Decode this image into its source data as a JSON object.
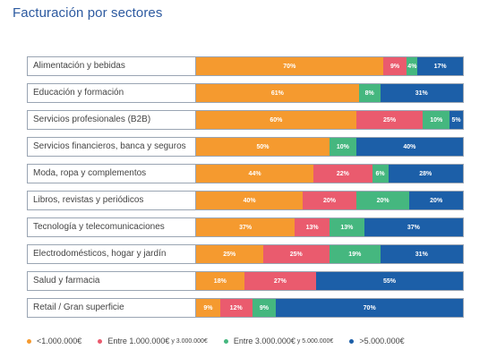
{
  "header": {
    "title": "Facturación por sectores"
  },
  "colors": {
    "s1": "#f59a2f",
    "s2": "#ea5b6e",
    "s3": "#45b77f",
    "s4": "#1c5fa8"
  },
  "legend": [
    {
      "main": "<1.000.000€",
      "small": ""
    },
    {
      "main": "Entre 1.000.000€",
      "small": "y 3.000.000€"
    },
    {
      "main": "Entre 3.000.000€",
      "small": "y 5.000.000€"
    },
    {
      "main": ">5.000.000€",
      "small": ""
    }
  ],
  "chart_data": {
    "type": "bar",
    "orientation": "horizontal",
    "stacked": true,
    "title": "Facturación por sectores",
    "categories": [
      "Alimentación y bebidas",
      "Educación y formación",
      "Servicios profesionales (B2B)",
      "Servicios financieros, banca y seguros",
      "Moda, ropa y complementos",
      "Libros, revistas y periódicos",
      "Tecnología y telecomunicaciones",
      "Electrodomésticos, hogar y jardín",
      "Salud y farmacia",
      "Retail / Gran superficie"
    ],
    "series": [
      {
        "name": "<1.000.000€",
        "values": [
          70,
          61,
          60,
          50,
          44,
          40,
          37,
          25,
          18,
          9
        ]
      },
      {
        "name": "Entre 1.000.000€ y 3.000.000€",
        "values": [
          9,
          0,
          25,
          0,
          22,
          20,
          13,
          25,
          27,
          12
        ]
      },
      {
        "name": "Entre 3.000.000€ y 5.000.000€",
        "values": [
          4,
          8,
          10,
          10,
          6,
          20,
          13,
          19,
          0,
          9
        ]
      },
      {
        "name": ">5.000.000€",
        "values": [
          17,
          31,
          5,
          40,
          28,
          20,
          37,
          31,
          55,
          70
        ]
      }
    ],
    "labels": [
      [
        "70%",
        "9%",
        "4%",
        "17%"
      ],
      [
        "61%",
        "",
        "8%",
        "31%"
      ],
      [
        "60%",
        "25%",
        "10%",
        "5%"
      ],
      [
        "50%",
        "",
        "10%",
        "40%"
      ],
      [
        "44%",
        "22%",
        "6%",
        "28%"
      ],
      [
        "40%",
        "20%",
        "20%",
        "20%"
      ],
      [
        "37%",
        "13%",
        "13%",
        "37%"
      ],
      [
        "25%",
        "25%",
        "19%",
        "31%"
      ],
      [
        "18%",
        "27%",
        "",
        "55%"
      ],
      [
        "9%",
        "12%",
        "9%",
        "70%"
      ]
    ],
    "xlim": [
      0,
      100
    ],
    "legend_position": "bottom"
  }
}
